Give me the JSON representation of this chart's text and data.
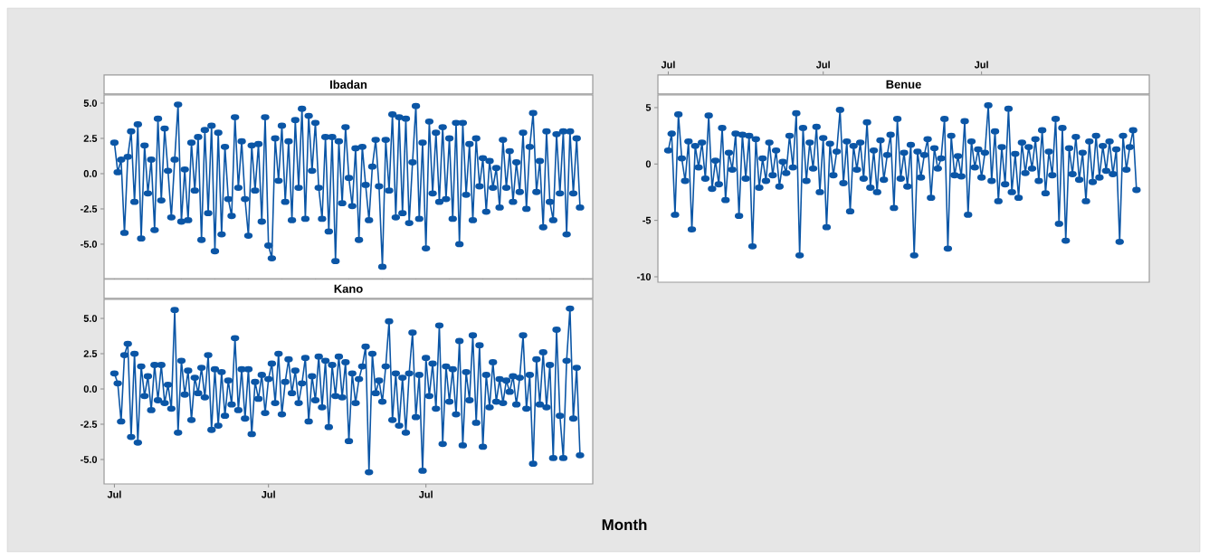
{
  "chart_data": [
    {
      "type": "line",
      "title": "Ibadan",
      "color": "#0b56a6",
      "marker": "circle",
      "line_style": "solid",
      "grid": false,
      "tick_labels": "y",
      "ylim": [
        -7.44,
        5.58
      ],
      "yticks": [
        {
          "value": -5,
          "label": "-5.0"
        },
        {
          "value": -2.5,
          "label": "-2.5"
        },
        {
          "value": 0,
          "label": "0.0"
        },
        {
          "value": 2.5,
          "label": "2.5"
        },
        {
          "value": 5,
          "label": "5.0"
        }
      ],
      "categories": [
        null,
        null,
        null,
        null,
        null,
        null,
        null,
        null,
        null,
        null,
        null,
        null,
        null,
        null,
        null,
        null,
        null,
        null,
        null,
        null,
        null,
        null,
        null,
        null,
        null,
        null,
        null,
        null,
        null,
        null,
        null,
        null,
        null,
        null,
        null,
        null,
        null,
        null,
        null,
        null,
        null,
        null,
        null,
        null,
        null,
        null,
        null,
        null,
        null,
        null,
        null,
        null,
        null,
        null,
        null,
        null,
        null,
        null,
        null,
        null,
        null,
        null,
        null,
        null,
        null,
        null,
        null,
        null,
        null,
        null,
        null,
        null,
        null,
        null,
        null,
        null,
        null,
        null,
        null,
        null,
        null,
        null,
        null,
        null,
        null,
        null,
        null,
        null,
        null,
        null,
        null,
        null,
        null,
        null,
        null,
        null,
        null,
        null,
        null,
        null,
        null,
        null,
        null,
        null,
        null,
        null,
        null,
        null,
        null,
        null,
        null,
        null,
        null,
        null,
        null,
        null,
        null,
        null,
        null,
        null,
        null,
        null,
        null,
        null,
        null,
        null,
        null,
        null,
        null,
        null,
        null,
        null,
        null,
        null,
        null,
        null,
        null,
        null,
        null,
        null
      ],
      "values": [
        2.2,
        0.1,
        1.0,
        -4.2,
        1.2,
        3.0,
        -2.0,
        3.5,
        -4.6,
        2.0,
        -1.4,
        1.0,
        -4.0,
        3.9,
        -1.9,
        3.2,
        0.2,
        -3.1,
        1.0,
        4.9,
        -3.4,
        0.3,
        -3.3,
        2.2,
        -1.2,
        2.6,
        -4.7,
        3.1,
        -2.8,
        3.4,
        -5.5,
        2.9,
        -4.3,
        1.9,
        -1.8,
        -3.0,
        4.0,
        -1.0,
        2.3,
        -1.8,
        -4.4,
        2.0,
        -1.2,
        2.1,
        -3.4,
        4.0,
        -5.1,
        -6.0,
        2.5,
        -0.5,
        3.4,
        -2.0,
        2.3,
        -3.3,
        3.8,
        -1.0,
        4.6,
        -3.2,
        4.1,
        0.2,
        3.6,
        -1.0,
        -3.2,
        2.6,
        -4.1,
        2.6,
        -6.2,
        2.3,
        -2.1,
        3.3,
        -0.3,
        -2.3,
        1.8,
        -4.7,
        1.9,
        -0.8,
        -3.3,
        0.5,
        2.4,
        -0.9,
        -6.6,
        2.4,
        -1.2,
        4.2,
        -3.1,
        4.0,
        -2.8,
        3.9,
        -3.5,
        0.8,
        4.8,
        -3.2,
        2.2,
        -5.3,
        3.7,
        -1.4,
        2.9,
        -2.0,
        3.3,
        -1.8,
        2.5,
        -3.2,
        3.6,
        -5.0,
        3.6,
        -1.5,
        2.1,
        -3.3,
        2.5,
        -0.9,
        1.1,
        -2.7,
        0.9,
        -1.0,
        0.4,
        -2.4,
        2.4,
        -1.0,
        1.6,
        -2.0,
        0.8,
        -1.3,
        2.9,
        -2.5,
        1.9,
        4.3,
        -1.3,
        0.9,
        -3.8,
        3.0,
        -2.0,
        -3.3,
        2.8,
        -1.4,
        3.0,
        -4.3,
        3.0,
        -1.4,
        2.5,
        -2.4
      ]
    },
    {
      "type": "line",
      "title": "Benue",
      "color": "#0b56a6",
      "marker": "circle",
      "line_style": "solid",
      "grid": false,
      "ylim": [
        -10.48,
        6.12
      ],
      "yticks": [
        -10,
        -5,
        0,
        5
      ],
      "categories": [
        "Jul",
        null,
        null,
        null,
        null,
        null,
        null,
        null,
        null,
        null,
        null,
        null,
        null,
        null,
        null,
        null,
        null,
        null,
        null,
        null,
        null,
        null,
        null,
        null,
        null,
        null,
        null,
        null,
        null,
        null,
        null,
        null,
        null,
        null,
        null,
        null,
        null,
        null,
        null,
        null,
        null,
        null,
        null,
        null,
        null,
        null,
        "Jul",
        null,
        null,
        null,
        null,
        null,
        null,
        null,
        null,
        null,
        null,
        null,
        null,
        null,
        null,
        null,
        null,
        null,
        null,
        null,
        null,
        null,
        null,
        null,
        null,
        null,
        null,
        null,
        null,
        null,
        null,
        null,
        null,
        null,
        null,
        null,
        null,
        null,
        null,
        null,
        null,
        null,
        null,
        null,
        null,
        null,
        null,
        "Jul",
        null,
        null,
        null,
        null,
        null,
        null,
        null,
        null,
        null,
        null,
        null,
        null,
        null,
        null,
        null,
        null,
        null,
        null,
        null,
        null,
        null,
        null,
        null,
        null,
        null,
        null,
        null,
        null,
        null,
        null,
        null,
        null,
        null,
        null,
        null,
        null,
        null,
        null,
        null,
        null,
        null,
        null,
        null,
        null,
        null,
        null
      ],
      "values": [
        1.2,
        2.7,
        -4.5,
        4.4,
        0.5,
        -1.5,
        2.0,
        -5.8,
        1.6,
        -0.3,
        1.9,
        -1.3,
        4.3,
        -2.2,
        0.3,
        -1.8,
        3.2,
        -3.2,
        1.0,
        -0.5,
        2.7,
        -4.6,
        2.6,
        -1.3,
        2.5,
        -7.3,
        2.2,
        -2.1,
        0.5,
        -1.5,
        1.9,
        -1.0,
        1.2,
        -2.0,
        0.2,
        -0.8,
        2.5,
        -0.3,
        4.5,
        -8.1,
        3.2,
        -1.5,
        1.9,
        -0.4,
        3.3,
        -2.5,
        2.3,
        -5.6,
        1.8,
        -1.0,
        1.1,
        4.8,
        -1.7,
        2.0,
        -4.2,
        1.6,
        -0.5,
        1.9,
        -1.3,
        3.7,
        -2.1,
        1.2,
        -2.5,
        2.1,
        -1.4,
        0.8,
        2.6,
        -3.9,
        4.0,
        -1.3,
        1.0,
        -2.0,
        1.7,
        -8.1,
        1.1,
        -1.2,
        0.8,
        2.2,
        -3.0,
        1.4,
        -0.4,
        0.5,
        4.0,
        -7.5,
        2.5,
        -1.0,
        0.7,
        -1.1,
        3.8,
        -4.5,
        2.0,
        -0.3,
        1.3,
        -1.2,
        1.0,
        5.2,
        -1.5,
        2.9,
        -3.3,
        1.5,
        -1.8,
        4.9,
        -2.5,
        0.9,
        -3.0,
        1.9,
        -0.8,
        1.5,
        -0.4,
        2.2,
        -1.5,
        3.0,
        -2.6,
        1.1,
        -1.0,
        4.0,
        -5.3,
        3.2,
        -6.8,
        1.4,
        -0.9,
        2.4,
        -1.4,
        1.0,
        -3.3,
        2.0,
        -1.6,
        2.5,
        -1.2,
        1.6,
        -0.6,
        2.0,
        -0.9,
        1.3,
        -6.9,
        2.5,
        -0.5,
        1.5,
        3.0,
        -2.3
      ]
    },
    {
      "type": "line",
      "title": "Kano",
      "xlabel": "Month",
      "color": "#0b56a6",
      "marker": "circle",
      "line_style": "solid",
      "grid": false,
      "ylim": [
        -6.73,
        6.35
      ],
      "yticks": [
        {
          "value": -5,
          "label": "-5.0"
        },
        {
          "value": -2.5,
          "label": "-2.5"
        },
        {
          "value": 0,
          "label": "0.0"
        },
        {
          "value": 2.5,
          "label": "2.5"
        },
        {
          "value": 5,
          "label": "5.0"
        }
      ],
      "categories": [
        "Jul",
        null,
        null,
        null,
        null,
        null,
        null,
        null,
        null,
        null,
        null,
        null,
        null,
        null,
        null,
        null,
        null,
        null,
        null,
        null,
        null,
        null,
        null,
        null,
        null,
        null,
        null,
        null,
        null,
        null,
        null,
        null,
        null,
        null,
        null,
        null,
        null,
        null,
        null,
        null,
        null,
        null,
        null,
        null,
        null,
        null,
        "Jul",
        null,
        null,
        null,
        null,
        null,
        null,
        null,
        null,
        null,
        null,
        null,
        null,
        null,
        null,
        null,
        null,
        null,
        null,
        null,
        null,
        null,
        null,
        null,
        null,
        null,
        null,
        null,
        null,
        null,
        null,
        null,
        null,
        null,
        null,
        null,
        null,
        null,
        null,
        null,
        null,
        null,
        null,
        null,
        null,
        null,
        null,
        "Jul",
        null,
        null,
        null,
        null,
        null,
        null,
        null,
        null,
        null,
        null,
        null,
        null,
        null,
        null,
        null,
        null,
        null,
        null,
        null,
        null,
        null,
        null,
        null,
        null,
        null,
        null,
        null,
        null,
        null,
        null,
        null,
        null,
        null,
        null,
        null,
        null,
        null,
        null,
        null,
        null,
        null,
        null,
        null,
        null,
        null,
        null
      ],
      "values": [
        1.1,
        0.4,
        -2.3,
        2.4,
        3.2,
        -3.4,
        2.5,
        -3.8,
        1.6,
        -0.5,
        0.9,
        -1.5,
        1.7,
        -0.8,
        1.7,
        -1.0,
        0.3,
        -1.4,
        5.6,
        -3.1,
        2.0,
        -0.4,
        1.3,
        -2.2,
        0.8,
        -0.3,
        1.5,
        -0.6,
        2.4,
        -2.9,
        1.4,
        -2.6,
        1.2,
        -1.9,
        0.6,
        -1.1,
        3.6,
        -1.5,
        1.4,
        -2.1,
        1.4,
        -3.2,
        0.5,
        -0.7,
        1.0,
        -1.7,
        0.7,
        1.8,
        -1.0,
        2.5,
        -1.8,
        0.5,
        2.1,
        -0.3,
        1.3,
        -1.0,
        0.4,
        2.2,
        -2.3,
        0.9,
        -0.8,
        2.3,
        -1.3,
        2.0,
        -2.7,
        1.7,
        -0.5,
        2.3,
        -0.6,
        1.9,
        -3.7,
        1.1,
        -1.0,
        0.7,
        1.6,
        3.0,
        -5.9,
        2.5,
        -0.3,
        0.6,
        -0.9,
        1.6,
        4.8,
        -2.2,
        1.1,
        -2.6,
        0.8,
        -3.1,
        1.1,
        4.0,
        -2.0,
        1.0,
        -5.8,
        2.2,
        -0.5,
        1.8,
        -1.4,
        4.5,
        -3.9,
        1.6,
        -0.9,
        1.4,
        -1.8,
        3.4,
        -4.0,
        1.2,
        -0.8,
        3.8,
        -2.4,
        3.1,
        -4.1,
        1.0,
        -1.3,
        1.9,
        -0.9,
        0.7,
        -1.0,
        0.6,
        -0.2,
        0.9,
        -1.1,
        0.8,
        3.8,
        -1.4,
        1.0,
        -5.3,
        2.1,
        -1.1,
        2.6,
        -1.3,
        1.7,
        -4.9,
        4.2,
        -1.9,
        -4.9,
        2.0,
        5.7,
        -2.1,
        1.5,
        -4.7
      ]
    }
  ]
}
